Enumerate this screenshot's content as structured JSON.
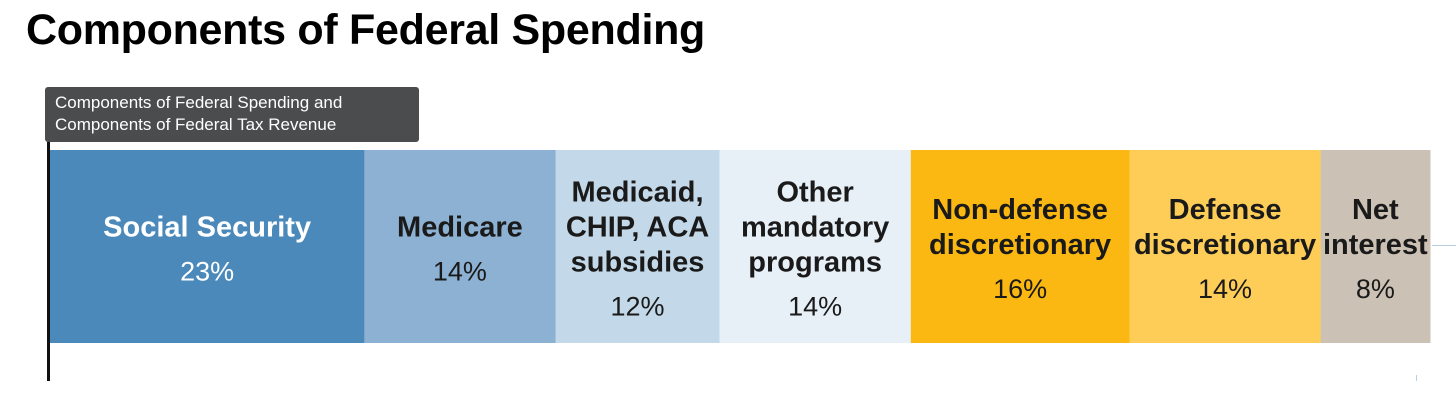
{
  "title": "Components of Federal Spending",
  "tooltip": {
    "line1": "Components of Federal Spending and",
    "line2": "Components of Federal Tax Revenue"
  },
  "chart_data": {
    "type": "bar",
    "orientation": "stacked-horizontal",
    "categories": [
      "Social Security",
      "Medicare",
      "Medicaid, CHIP, ACA subsidies",
      "Other mandatory programs",
      "Non-defense discretionary",
      "Defense discretionary",
      "Net interest"
    ],
    "values": [
      23,
      14,
      12,
      14,
      16,
      14,
      8
    ],
    "unit": "%",
    "segments": [
      {
        "label_lines": [
          "Social Security"
        ],
        "value": 23,
        "value_label": "23%",
        "color": "#4a89b9",
        "text_color": "#ffffff"
      },
      {
        "label_lines": [
          "Medicare"
        ],
        "value": 14,
        "value_label": "14%",
        "color": "#8cb1d2",
        "text_color": "#1a1a1a"
      },
      {
        "label_lines": [
          "Medicaid,",
          "CHIP, ACA",
          "subsidies"
        ],
        "value": 12,
        "value_label": "12%",
        "color": "#c3d8e8",
        "text_color": "#1a1a1a"
      },
      {
        "label_lines": [
          "Other",
          "mandatory",
          "programs"
        ],
        "value": 14,
        "value_label": "14%",
        "color": "#e7eff7",
        "text_color": "#1a1a1a"
      },
      {
        "label_lines": [
          "Non-defense",
          "discretionary"
        ],
        "value": 16,
        "value_label": "16%",
        "color": "#fbb812",
        "text_color": "#1a1a1a"
      },
      {
        "label_lines": [
          "Defense",
          "discretionary"
        ],
        "value": 14,
        "value_label": "14%",
        "color": "#fdcd57",
        "text_color": "#1a1a1a"
      },
      {
        "label_lines": [
          "Net",
          "interest"
        ],
        "value": 8,
        "value_label": "8%",
        "color": "#cbc1b4",
        "text_color": "#1a1a1a"
      }
    ],
    "legend": "none",
    "grid": false
  }
}
